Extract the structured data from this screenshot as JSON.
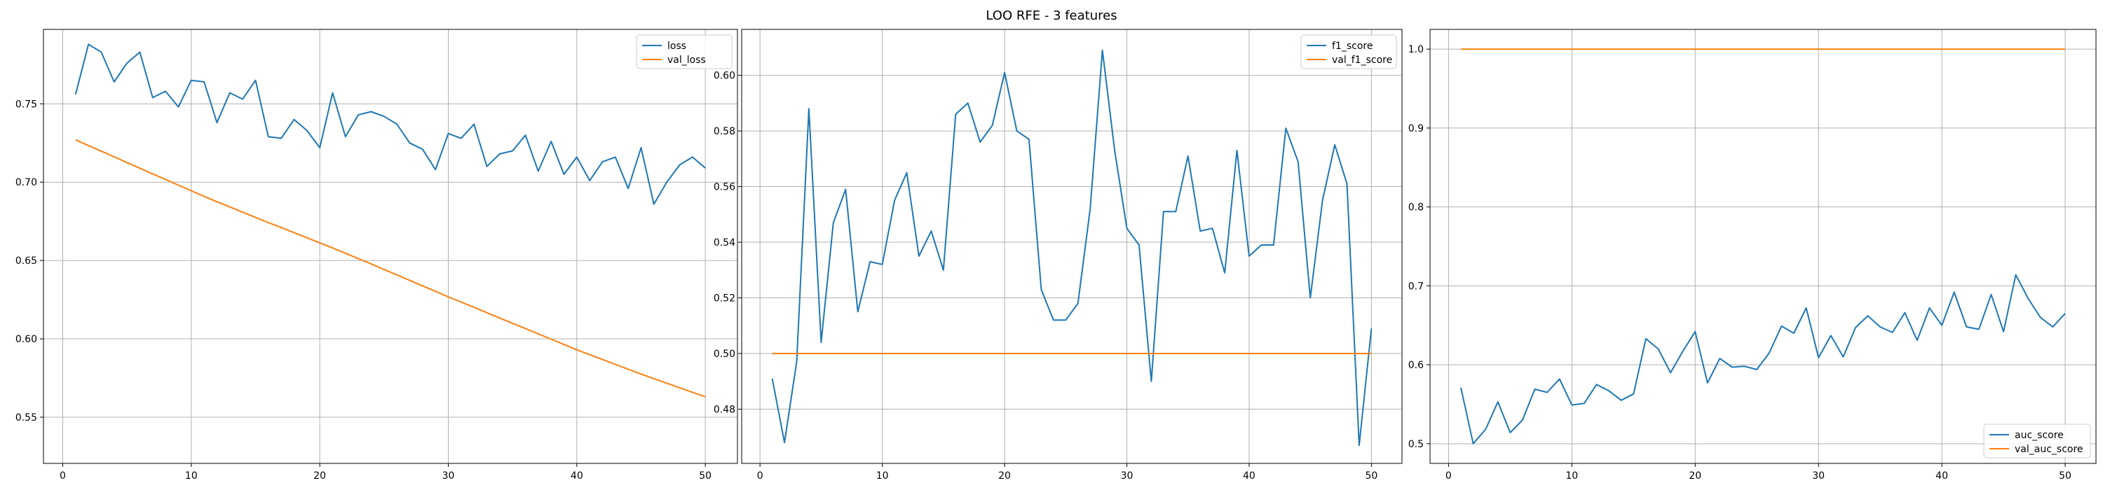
{
  "figure": {
    "title": "LOO RFE - 3 features"
  },
  "chart_data": [
    {
      "type": "line",
      "title": "",
      "xlabel": "",
      "ylabel": "",
      "xlim": [
        -1.5,
        52.5
      ],
      "ylim": [
        0.5205,
        0.7975
      ],
      "xticks": [
        0,
        10,
        20,
        30,
        40,
        50
      ],
      "yticks": [
        0.55,
        0.6,
        0.65,
        0.7,
        0.75
      ],
      "ytick_decimals": 2,
      "grid": true,
      "legend": "top-right",
      "x": [
        1,
        2,
        3,
        4,
        5,
        6,
        7,
        8,
        9,
        10,
        11,
        12,
        13,
        14,
        15,
        16,
        17,
        18,
        19,
        20,
        21,
        22,
        23,
        24,
        25,
        26,
        27,
        28,
        29,
        30,
        31,
        32,
        33,
        34,
        35,
        36,
        37,
        38,
        39,
        40,
        41,
        42,
        43,
        44,
        45,
        46,
        47,
        48,
        49,
        50
      ],
      "series": [
        {
          "name": "loss",
          "color": "#1f77b4",
          "values": [
            0.756,
            0.788,
            0.783,
            0.764,
            0.776,
            0.783,
            0.754,
            0.758,
            0.748,
            0.765,
            0.764,
            0.738,
            0.757,
            0.753,
            0.765,
            0.729,
            0.728,
            0.74,
            0.733,
            0.722,
            0.757,
            0.729,
            0.743,
            0.745,
            0.742,
            0.737,
            0.725,
            0.721,
            0.708,
            0.731,
            0.728,
            0.737,
            0.71,
            0.718,
            0.72,
            0.73,
            0.707,
            0.726,
            0.705,
            0.716,
            0.701,
            0.713,
            0.716,
            0.696,
            0.722,
            0.686,
            0.7,
            0.711,
            0.716,
            0.709
          ]
        },
        {
          "name": "val_loss",
          "color": "#ff7f0e",
          "values": [
            0.727,
            0.7234,
            0.7198,
            0.7162,
            0.7125,
            0.7089,
            0.7053,
            0.7017,
            0.6981,
            0.6945,
            0.6909,
            0.6875,
            0.6842,
            0.6808,
            0.6775,
            0.6742,
            0.671,
            0.6678,
            0.6645,
            0.6613,
            0.658,
            0.6546,
            0.6512,
            0.6478,
            0.6443,
            0.6408,
            0.6373,
            0.6338,
            0.6303,
            0.6268,
            0.6235,
            0.6201,
            0.6167,
            0.6133,
            0.6099,
            0.6066,
            0.6032,
            0.5998,
            0.5964,
            0.593,
            0.5899,
            0.5868,
            0.5837,
            0.5806,
            0.5775,
            0.5746,
            0.5717,
            0.5688,
            0.5659,
            0.563
          ]
        }
      ]
    },
    {
      "type": "line",
      "title": "",
      "xlabel": "",
      "ylabel": "",
      "xlim": [
        -1.5,
        52.5
      ],
      "ylim": [
        0.4605,
        0.6165
      ],
      "xticks": [
        0,
        10,
        20,
        30,
        40,
        50
      ],
      "yticks": [
        0.48,
        0.5,
        0.52,
        0.54,
        0.56,
        0.58,
        0.6
      ],
      "ytick_decimals": 2,
      "grid": true,
      "legend": "top-right",
      "x": [
        1,
        2,
        3,
        4,
        5,
        6,
        7,
        8,
        9,
        10,
        11,
        12,
        13,
        14,
        15,
        16,
        17,
        18,
        19,
        20,
        21,
        22,
        23,
        24,
        25,
        26,
        27,
        28,
        29,
        30,
        31,
        32,
        33,
        34,
        35,
        36,
        37,
        38,
        39,
        40,
        41,
        42,
        43,
        44,
        45,
        46,
        47,
        48,
        49,
        50
      ],
      "series": [
        {
          "name": "f1_score",
          "color": "#1f77b4",
          "values": [
            0.491,
            0.468,
            0.497,
            0.588,
            0.504,
            0.547,
            0.559,
            0.515,
            0.533,
            0.532,
            0.555,
            0.565,
            0.535,
            0.544,
            0.53,
            0.586,
            0.59,
            0.576,
            0.582,
            0.601,
            0.58,
            0.577,
            0.523,
            0.512,
            0.512,
            0.518,
            0.552,
            0.609,
            0.573,
            0.545,
            0.539,
            0.49,
            0.551,
            0.551,
            0.571,
            0.544,
            0.545,
            0.529,
            0.573,
            0.535,
            0.539,
            0.539,
            0.581,
            0.569,
            0.52,
            0.555,
            0.575,
            0.561,
            0.467,
            0.509
          ]
        },
        {
          "name": "val_f1_score",
          "color": "#ff7f0e",
          "values": [
            0.5,
            0.5,
            0.5,
            0.5,
            0.5,
            0.5,
            0.5,
            0.5,
            0.5,
            0.5,
            0.5,
            0.5,
            0.5,
            0.5,
            0.5,
            0.5,
            0.5,
            0.5,
            0.5,
            0.5,
            0.5,
            0.5,
            0.5,
            0.5,
            0.5,
            0.5,
            0.5,
            0.5,
            0.5,
            0.5,
            0.5,
            0.5,
            0.5,
            0.5,
            0.5,
            0.5,
            0.5,
            0.5,
            0.5,
            0.5,
            0.5,
            0.5,
            0.5,
            0.5,
            0.5,
            0.5,
            0.5,
            0.5,
            0.5,
            0.5
          ]
        }
      ]
    },
    {
      "type": "line",
      "title": "",
      "xlabel": "",
      "ylabel": "",
      "xlim": [
        -1.5,
        52.5
      ],
      "ylim": [
        0.475,
        1.025
      ],
      "xticks": [
        0,
        10,
        20,
        30,
        40,
        50
      ],
      "yticks": [
        0.5,
        0.6,
        0.7,
        0.8,
        0.9,
        1.0
      ],
      "ytick_decimals": 1,
      "grid": true,
      "legend": "bottom-right",
      "x": [
        1,
        2,
        3,
        4,
        5,
        6,
        7,
        8,
        9,
        10,
        11,
        12,
        13,
        14,
        15,
        16,
        17,
        18,
        19,
        20,
        21,
        22,
        23,
        24,
        25,
        26,
        27,
        28,
        29,
        30,
        31,
        32,
        33,
        34,
        35,
        36,
        37,
        38,
        39,
        40,
        41,
        42,
        43,
        44,
        45,
        46,
        47,
        48,
        49,
        50
      ],
      "series": [
        {
          "name": "auc_score",
          "color": "#1f77b4",
          "values": [
            0.571,
            0.5,
            0.518,
            0.553,
            0.514,
            0.53,
            0.569,
            0.565,
            0.582,
            0.549,
            0.551,
            0.575,
            0.567,
            0.555,
            0.563,
            0.633,
            0.62,
            0.59,
            0.617,
            0.642,
            0.577,
            0.608,
            0.597,
            0.598,
            0.594,
            0.615,
            0.649,
            0.64,
            0.672,
            0.609,
            0.637,
            0.61,
            0.647,
            0.662,
            0.648,
            0.641,
            0.666,
            0.631,
            0.672,
            0.65,
            0.692,
            0.648,
            0.645,
            0.689,
            0.642,
            0.714,
            0.684,
            0.66,
            0.648,
            0.665
          ]
        },
        {
          "name": "val_auc_score",
          "color": "#ff7f0e",
          "values": [
            1.0,
            1.0,
            1.0,
            1.0,
            1.0,
            1.0,
            1.0,
            1.0,
            1.0,
            1.0,
            1.0,
            1.0,
            1.0,
            1.0,
            1.0,
            1.0,
            1.0,
            1.0,
            1.0,
            1.0,
            1.0,
            1.0,
            1.0,
            1.0,
            1.0,
            1.0,
            1.0,
            1.0,
            1.0,
            1.0,
            1.0,
            1.0,
            1.0,
            1.0,
            1.0,
            1.0,
            1.0,
            1.0,
            1.0,
            1.0,
            1.0,
            1.0,
            1.0,
            1.0,
            1.0,
            1.0,
            1.0,
            1.0,
            1.0,
            1.0
          ]
        }
      ]
    }
  ]
}
